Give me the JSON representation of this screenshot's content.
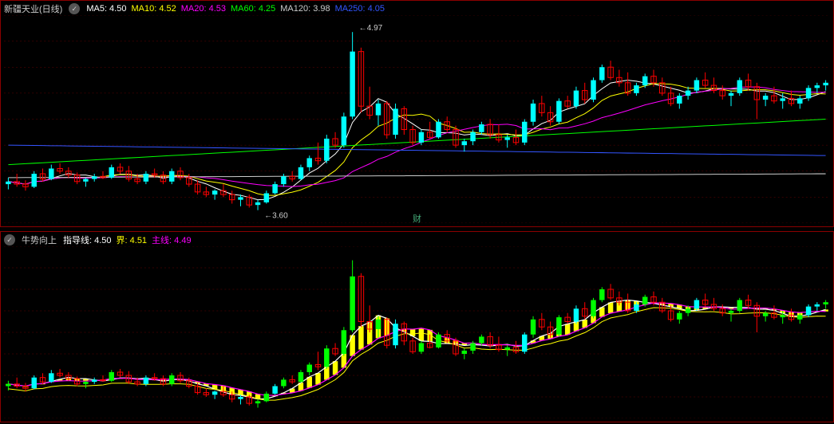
{
  "top": {
    "title": "新疆天业(日线)",
    "ma": [
      {
        "label": "MA5",
        "value": "4.50",
        "color": "#ffffff"
      },
      {
        "label": "MA10",
        "value": "4.52",
        "color": "#ffff00"
      },
      {
        "label": "MA20",
        "value": "4.53",
        "color": "#ff00ff"
      },
      {
        "label": "MA60",
        "value": "4.25",
        "color": "#00ff00"
      },
      {
        "label": "MA120",
        "value": "3.98",
        "color": "#cccccc"
      },
      {
        "label": "MA250",
        "value": "4.05",
        "color": "#3355ff"
      }
    ],
    "y_range": [
      3.5,
      5.1
    ],
    "grid_step": 0.2,
    "grid_color": "#660000",
    "price_high": {
      "value": "4.97",
      "x_idx": 40
    },
    "price_low": {
      "value": "3.60",
      "x_idx": 29
    },
    "watermark": "财",
    "candles": [
      {
        "o": 3.8,
        "h": 3.85,
        "l": 3.76,
        "c": 3.82,
        "up": true
      },
      {
        "o": 3.82,
        "h": 3.88,
        "l": 3.78,
        "c": 3.8,
        "up": false
      },
      {
        "o": 3.8,
        "h": 3.83,
        "l": 3.75,
        "c": 3.78,
        "up": false
      },
      {
        "o": 3.78,
        "h": 3.9,
        "l": 3.77,
        "c": 3.88,
        "up": true
      },
      {
        "o": 3.88,
        "h": 3.92,
        "l": 3.82,
        "c": 3.84,
        "up": false
      },
      {
        "o": 3.84,
        "h": 3.95,
        "l": 3.83,
        "c": 3.92,
        "up": true
      },
      {
        "o": 3.92,
        "h": 3.96,
        "l": 3.88,
        "c": 3.9,
        "up": false
      },
      {
        "o": 3.9,
        "h": 3.93,
        "l": 3.85,
        "c": 3.87,
        "up": false
      },
      {
        "o": 3.87,
        "h": 3.89,
        "l": 3.8,
        "c": 3.82,
        "up": false
      },
      {
        "o": 3.82,
        "h": 3.85,
        "l": 3.78,
        "c": 3.84,
        "up": true
      },
      {
        "o": 3.84,
        "h": 3.88,
        "l": 3.82,
        "c": 3.86,
        "up": true
      },
      {
        "o": 3.86,
        "h": 3.9,
        "l": 3.84,
        "c": 3.85,
        "up": false
      },
      {
        "o": 3.85,
        "h": 3.95,
        "l": 3.84,
        "c": 3.93,
        "up": true
      },
      {
        "o": 3.93,
        "h": 3.96,
        "l": 3.88,
        "c": 3.9,
        "up": false
      },
      {
        "o": 3.9,
        "h": 3.94,
        "l": 3.82,
        "c": 3.84,
        "up": false
      },
      {
        "o": 3.84,
        "h": 3.88,
        "l": 3.8,
        "c": 3.82,
        "up": false
      },
      {
        "o": 3.82,
        "h": 3.9,
        "l": 3.8,
        "c": 3.88,
        "up": true
      },
      {
        "o": 3.88,
        "h": 3.92,
        "l": 3.85,
        "c": 3.87,
        "up": false
      },
      {
        "o": 3.87,
        "h": 3.9,
        "l": 3.8,
        "c": 3.82,
        "up": false
      },
      {
        "o": 3.82,
        "h": 3.92,
        "l": 3.8,
        "c": 3.9,
        "up": true
      },
      {
        "o": 3.9,
        "h": 3.93,
        "l": 3.83,
        "c": 3.85,
        "up": false
      },
      {
        "o": 3.85,
        "h": 3.88,
        "l": 3.78,
        "c": 3.8,
        "up": false
      },
      {
        "o": 3.8,
        "h": 3.83,
        "l": 3.72,
        "c": 3.74,
        "up": false
      },
      {
        "o": 3.74,
        "h": 3.78,
        "l": 3.7,
        "c": 3.72,
        "up": false
      },
      {
        "o": 3.72,
        "h": 3.76,
        "l": 3.68,
        "c": 3.75,
        "up": true
      },
      {
        "o": 3.75,
        "h": 3.8,
        "l": 3.7,
        "c": 3.72,
        "up": false
      },
      {
        "o": 3.72,
        "h": 3.75,
        "l": 3.65,
        "c": 3.68,
        "up": false
      },
      {
        "o": 3.68,
        "h": 3.72,
        "l": 3.63,
        "c": 3.7,
        "up": true
      },
      {
        "o": 3.7,
        "h": 3.72,
        "l": 3.62,
        "c": 3.64,
        "up": false
      },
      {
        "o": 3.64,
        "h": 3.68,
        "l": 3.6,
        "c": 3.66,
        "up": true
      },
      {
        "o": 3.66,
        "h": 3.75,
        "l": 3.65,
        "c": 3.73,
        "up": true
      },
      {
        "o": 3.73,
        "h": 3.82,
        "l": 3.72,
        "c": 3.8,
        "up": true
      },
      {
        "o": 3.8,
        "h": 3.88,
        "l": 3.78,
        "c": 3.86,
        "up": true
      },
      {
        "o": 3.86,
        "h": 3.9,
        "l": 3.82,
        "c": 3.84,
        "up": false
      },
      {
        "o": 3.84,
        "h": 3.95,
        "l": 3.83,
        "c": 3.93,
        "up": true
      },
      {
        "o": 3.93,
        "h": 4.02,
        "l": 3.9,
        "c": 4.0,
        "up": true
      },
      {
        "o": 4.0,
        "h": 4.12,
        "l": 3.95,
        "c": 3.98,
        "up": false
      },
      {
        "o": 3.98,
        "h": 4.18,
        "l": 3.96,
        "c": 4.15,
        "up": true
      },
      {
        "o": 4.15,
        "h": 4.2,
        "l": 4.08,
        "c": 4.1,
        "up": false
      },
      {
        "o": 4.1,
        "h": 4.35,
        "l": 4.08,
        "c": 4.32,
        "up": true
      },
      {
        "o": 4.32,
        "h": 4.97,
        "l": 4.3,
        "c": 4.82,
        "up": true
      },
      {
        "o": 4.82,
        "h": 4.85,
        "l": 4.35,
        "c": 4.4,
        "up": false
      },
      {
        "o": 4.4,
        "h": 4.55,
        "l": 4.3,
        "c": 4.33,
        "up": false
      },
      {
        "o": 4.33,
        "h": 4.45,
        "l": 4.25,
        "c": 4.42,
        "up": true
      },
      {
        "o": 4.42,
        "h": 4.44,
        "l": 4.15,
        "c": 4.18,
        "up": false
      },
      {
        "o": 4.18,
        "h": 4.42,
        "l": 4.15,
        "c": 4.38,
        "up": true
      },
      {
        "o": 4.38,
        "h": 4.4,
        "l": 4.18,
        "c": 4.22,
        "up": false
      },
      {
        "o": 4.22,
        "h": 4.25,
        "l": 4.1,
        "c": 4.12,
        "up": false
      },
      {
        "o": 4.12,
        "h": 4.22,
        "l": 4.1,
        "c": 4.2,
        "up": true
      },
      {
        "o": 4.2,
        "h": 4.28,
        "l": 4.15,
        "c": 4.16,
        "up": false
      },
      {
        "o": 4.16,
        "h": 4.3,
        "l": 4.15,
        "c": 4.28,
        "up": true
      },
      {
        "o": 4.28,
        "h": 4.32,
        "l": 4.2,
        "c": 4.22,
        "up": false
      },
      {
        "o": 4.22,
        "h": 4.25,
        "l": 4.08,
        "c": 4.1,
        "up": false
      },
      {
        "o": 4.1,
        "h": 4.15,
        "l": 4.05,
        "c": 4.13,
        "up": true
      },
      {
        "o": 4.13,
        "h": 4.22,
        "l": 4.1,
        "c": 4.2,
        "up": true
      },
      {
        "o": 4.2,
        "h": 4.28,
        "l": 4.18,
        "c": 4.26,
        "up": true
      },
      {
        "o": 4.26,
        "h": 4.3,
        "l": 4.15,
        "c": 4.18,
        "up": false
      },
      {
        "o": 4.18,
        "h": 4.26,
        "l": 4.12,
        "c": 4.14,
        "up": false
      },
      {
        "o": 4.14,
        "h": 4.18,
        "l": 4.08,
        "c": 4.16,
        "up": true
      },
      {
        "o": 4.16,
        "h": 4.22,
        "l": 4.1,
        "c": 4.12,
        "up": false
      },
      {
        "o": 4.12,
        "h": 4.3,
        "l": 4.1,
        "c": 4.28,
        "up": true
      },
      {
        "o": 4.28,
        "h": 4.45,
        "l": 4.25,
        "c": 4.42,
        "up": true
      },
      {
        "o": 4.42,
        "h": 4.48,
        "l": 4.32,
        "c": 4.35,
        "up": false
      },
      {
        "o": 4.35,
        "h": 4.4,
        "l": 4.25,
        "c": 4.28,
        "up": false
      },
      {
        "o": 4.28,
        "h": 4.46,
        "l": 4.26,
        "c": 4.44,
        "up": true
      },
      {
        "o": 4.44,
        "h": 4.48,
        "l": 4.38,
        "c": 4.4,
        "up": false
      },
      {
        "o": 4.4,
        "h": 4.55,
        "l": 4.38,
        "c": 4.52,
        "up": true
      },
      {
        "o": 4.52,
        "h": 4.58,
        "l": 4.42,
        "c": 4.45,
        "up": false
      },
      {
        "o": 4.45,
        "h": 4.62,
        "l": 4.43,
        "c": 4.6,
        "up": true
      },
      {
        "o": 4.6,
        "h": 4.72,
        "l": 4.58,
        "c": 4.7,
        "up": true
      },
      {
        "o": 4.7,
        "h": 4.75,
        "l": 4.6,
        "c": 4.62,
        "up": false
      },
      {
        "o": 4.62,
        "h": 4.68,
        "l": 4.55,
        "c": 4.58,
        "up": false
      },
      {
        "o": 4.58,
        "h": 4.66,
        "l": 4.48,
        "c": 4.5,
        "up": false
      },
      {
        "o": 4.5,
        "h": 4.58,
        "l": 4.48,
        "c": 4.56,
        "up": true
      },
      {
        "o": 4.56,
        "h": 4.65,
        "l": 4.54,
        "c": 4.63,
        "up": true
      },
      {
        "o": 4.63,
        "h": 4.68,
        "l": 4.55,
        "c": 4.58,
        "up": false
      },
      {
        "o": 4.58,
        "h": 4.62,
        "l": 4.48,
        "c": 4.5,
        "up": false
      },
      {
        "o": 4.5,
        "h": 4.55,
        "l": 4.4,
        "c": 4.42,
        "up": false
      },
      {
        "o": 4.42,
        "h": 4.5,
        "l": 4.38,
        "c": 4.48,
        "up": true
      },
      {
        "o": 4.48,
        "h": 4.55,
        "l": 4.45,
        "c": 4.52,
        "up": true
      },
      {
        "o": 4.52,
        "h": 4.62,
        "l": 4.5,
        "c": 4.6,
        "up": true
      },
      {
        "o": 4.6,
        "h": 4.66,
        "l": 4.54,
        "c": 4.56,
        "up": false
      },
      {
        "o": 4.56,
        "h": 4.62,
        "l": 4.5,
        "c": 4.52,
        "up": false
      },
      {
        "o": 4.52,
        "h": 4.56,
        "l": 4.45,
        "c": 4.48,
        "up": false
      },
      {
        "o": 4.48,
        "h": 4.52,
        "l": 4.4,
        "c": 4.5,
        "up": true
      },
      {
        "o": 4.5,
        "h": 4.62,
        "l": 4.48,
        "c": 4.6,
        "up": true
      },
      {
        "o": 4.6,
        "h": 4.65,
        "l": 4.52,
        "c": 4.55,
        "up": false
      },
      {
        "o": 4.55,
        "h": 4.58,
        "l": 4.3,
        "c": 4.45,
        "up": false
      },
      {
        "o": 4.45,
        "h": 4.5,
        "l": 4.4,
        "c": 4.48,
        "up": true
      },
      {
        "o": 4.48,
        "h": 4.55,
        "l": 4.42,
        "c": 4.44,
        "up": false
      },
      {
        "o": 4.44,
        "h": 4.5,
        "l": 4.38,
        "c": 4.46,
        "up": true
      },
      {
        "o": 4.46,
        "h": 4.52,
        "l": 4.4,
        "c": 4.42,
        "up": false
      },
      {
        "o": 4.42,
        "h": 4.48,
        "l": 4.38,
        "c": 4.46,
        "up": true
      },
      {
        "o": 4.46,
        "h": 4.56,
        "l": 4.44,
        "c": 4.54,
        "up": true
      },
      {
        "o": 4.54,
        "h": 4.58,
        "l": 4.5,
        "c": 4.56,
        "up": true
      },
      {
        "o": 4.56,
        "h": 4.6,
        "l": 4.52,
        "c": 4.58,
        "up": true
      }
    ]
  },
  "bottom": {
    "title": "牛势向上",
    "indicators": [
      {
        "label": "指导线",
        "value": "4.50",
        "color": "#ffffff"
      },
      {
        "label": "界",
        "value": "4.51",
        "color": "#ffff00"
      },
      {
        "label": "主线",
        "value": "4.49",
        "color": "#ff00ff"
      }
    ],
    "y_range": [
      3.5,
      5.1
    ],
    "grid_step": 0.2,
    "grid_color": "#660000",
    "bar_color_up": "#00ff00",
    "bar_color_down": "#ff0000",
    "bar_color_cyan": "#00ffff",
    "band_color": "#ffff00"
  }
}
